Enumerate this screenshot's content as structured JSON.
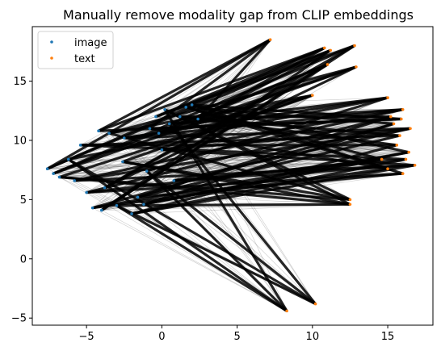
{
  "chart_data": {
    "type": "scatter",
    "title": "Manually remove modality gap from CLIP embeddings",
    "xlabel": "",
    "ylabel": "",
    "xlim": [
      -8.6,
      18.0
    ],
    "ylim": [
      -5.6,
      19.6
    ],
    "xticks": [
      -5,
      0,
      5,
      10,
      15
    ],
    "yticks": [
      -5,
      0,
      5,
      10,
      15
    ],
    "x_tick_labels": [
      "−5",
      "0",
      "5",
      "10",
      "15"
    ],
    "y_tick_labels": [
      "−5",
      "0",
      "5",
      "10",
      "15"
    ],
    "grid": false,
    "legend_position": "top-left",
    "legend": [
      "image",
      "text"
    ],
    "series": [
      {
        "name": "image",
        "color": "#1f77b4",
        "points": [
          [
            -7.6,
            7.6
          ],
          [
            -7.2,
            7.2
          ],
          [
            -6.8,
            6.9
          ],
          [
            -6.2,
            8.4
          ],
          [
            -5.8,
            6.6
          ],
          [
            -5.4,
            9.6
          ],
          [
            -5.0,
            5.6
          ],
          [
            -4.6,
            4.3
          ],
          [
            -4.2,
            10.8
          ],
          [
            -4.0,
            4.1
          ],
          [
            -3.5,
            10.6
          ],
          [
            -3.0,
            4.5
          ],
          [
            -2.5,
            10.2
          ],
          [
            -2.0,
            3.8
          ],
          [
            -1.6,
            5.2
          ],
          [
            -1.2,
            4.6
          ],
          [
            -0.8,
            11.0
          ],
          [
            -0.4,
            12.0
          ],
          [
            -0.2,
            10.6
          ],
          [
            0.2,
            12.6
          ],
          [
            0.5,
            11.4
          ],
          [
            0.8,
            6.6
          ],
          [
            1.2,
            12.0
          ],
          [
            1.6,
            12.8
          ],
          [
            2.0,
            13.0
          ],
          [
            2.4,
            11.8
          ],
          [
            -3.8,
            6.0
          ],
          [
            -2.6,
            8.2
          ],
          [
            -1.0,
            7.4
          ],
          [
            0.0,
            9.2
          ]
        ]
      },
      {
        "name": "text",
        "color": "#ff7f0e",
        "points": [
          [
            7.2,
            18.5
          ],
          [
            10.8,
            17.8
          ],
          [
            11.2,
            17.6
          ],
          [
            12.8,
            18.0
          ],
          [
            11.0,
            16.4
          ],
          [
            12.9,
            16.2
          ],
          [
            10.0,
            13.8
          ],
          [
            12.5,
            5.0
          ],
          [
            12.5,
            4.6
          ],
          [
            8.3,
            -4.4
          ],
          [
            10.2,
            -3.8
          ],
          [
            15.0,
            13.6
          ],
          [
            16.0,
            12.6
          ],
          [
            16.5,
            11.0
          ],
          [
            16.8,
            7.9
          ],
          [
            16.2,
            8.4
          ],
          [
            15.6,
            9.6
          ],
          [
            15.8,
            10.4
          ],
          [
            15.2,
            12.0
          ],
          [
            16.0,
            7.2
          ],
          [
            14.6,
            8.4
          ],
          [
            15.4,
            11.4
          ],
          [
            16.4,
            9.0
          ],
          [
            15.0,
            7.6
          ],
          [
            15.9,
            11.8
          ]
        ]
      }
    ],
    "connection_lines_color": "#000000"
  }
}
